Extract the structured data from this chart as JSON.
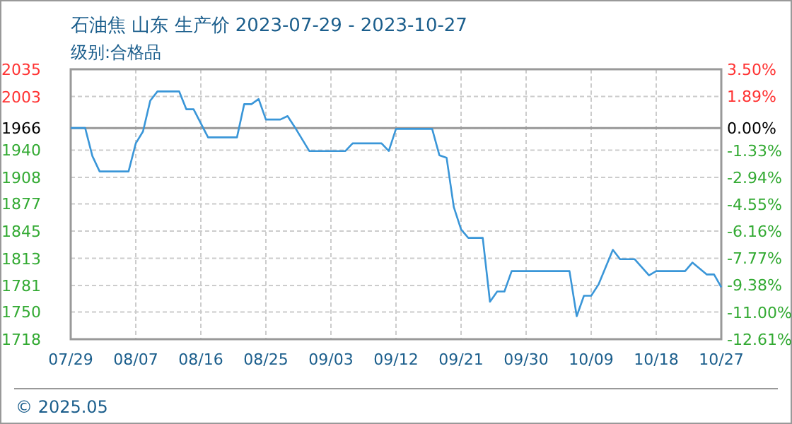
{
  "chart_data": {
    "type": "line",
    "title": "石油焦 山东 生产价 2023-07-29 - 2023-10-27",
    "subtitle": "级别:合格品",
    "annotations": [
      "© 2025.05"
    ],
    "x": [
      "2023-07-29",
      "2023-07-31",
      "2023-08-01",
      "2023-08-02",
      "2023-08-06",
      "2023-08-07",
      "2023-08-08",
      "2023-08-09",
      "2023-08-10",
      "2023-08-13",
      "2023-08-14",
      "2023-08-15",
      "2023-08-17",
      "2023-08-21",
      "2023-08-22",
      "2023-08-23",
      "2023-08-24",
      "2023-08-25",
      "2023-08-27",
      "2023-08-28",
      "2023-08-29",
      "2023-08-31",
      "2023-09-05",
      "2023-09-06",
      "2023-09-10",
      "2023-09-11",
      "2023-09-12",
      "2023-09-17",
      "2023-09-18",
      "2023-09-19",
      "2023-09-20",
      "2023-09-21",
      "2023-09-22",
      "2023-09-24",
      "2023-09-25",
      "2023-09-26",
      "2023-09-27",
      "2023-09-28",
      "2023-10-06",
      "2023-10-07",
      "2023-10-08",
      "2023-10-09",
      "2023-10-10",
      "2023-10-12",
      "2023-10-13",
      "2023-10-15",
      "2023-10-17",
      "2023-10-18",
      "2023-10-22",
      "2023-10-23",
      "2023-10-25",
      "2023-10-26",
      "2023-10-27"
    ],
    "series": [
      {
        "color": "#3a96d8",
        "values": [
          1966,
          1966,
          1933,
          1915,
          1915,
          1948,
          1962,
          1998,
          2009,
          2009,
          1988,
          1988,
          1955,
          1955,
          1994,
          1994,
          2000,
          1976,
          1976,
          1980,
          1967,
          1939,
          1939,
          1948,
          1948,
          1939,
          1965,
          1965,
          1934,
          1931,
          1873,
          1847,
          1837,
          1837,
          1762,
          1774,
          1774,
          1798,
          1798,
          1745,
          1769,
          1769,
          1782,
          1823,
          1812,
          1812,
          1793,
          1798,
          1798,
          1808,
          1794,
          1794,
          1779
        ]
      }
    ],
    "xlim": [
      "2023-07-29",
      "2023-10-27"
    ],
    "xticks": [
      {
        "value": "2023-07-29",
        "label": "07/29"
      },
      {
        "value": "2023-08-07",
        "label": "08/07"
      },
      {
        "value": "2023-08-16",
        "label": "08/16"
      },
      {
        "value": "2023-08-25",
        "label": "08/25"
      },
      {
        "value": "2023-09-03",
        "label": "09/03"
      },
      {
        "value": "2023-09-12",
        "label": "09/12"
      },
      {
        "value": "2023-09-21",
        "label": "09/21"
      },
      {
        "value": "2023-09-30",
        "label": "09/30"
      },
      {
        "value": "2023-10-09",
        "label": "10/09"
      },
      {
        "value": "2023-10-18",
        "label": "10/18"
      },
      {
        "value": "2023-10-27",
        "label": "10/27"
      }
    ],
    "ylim": [
      1718,
      2035
    ],
    "yticks": [
      1718,
      1750,
      1781,
      1813,
      1845,
      1877,
      1908,
      1940,
      1966,
      2003,
      2035
    ],
    "y2lim": [
      -12.61,
      3.5
    ],
    "y2ticks": [
      {
        "value": -12.61,
        "label": "-12.61%"
      },
      {
        "value": -11.0,
        "label": "-11.00%"
      },
      {
        "value": -9.38,
        "label": "-9.38%"
      },
      {
        "value": -7.77,
        "label": "-7.77%"
      },
      {
        "value": -6.16,
        "label": "-6.16%"
      },
      {
        "value": -4.55,
        "label": "-4.55%"
      },
      {
        "value": -2.94,
        "label": "-2.94%"
      },
      {
        "value": -1.33,
        "label": "-1.33%"
      },
      {
        "value": 0,
        "label": "0.00%"
      },
      {
        "value": 1.89,
        "label": "1.89%"
      },
      {
        "value": 3.5,
        "label": "3.50%"
      }
    ],
    "ref_lines": [
      {
        "axis": "y",
        "value": 1966,
        "color": "#999999"
      }
    ],
    "grid": true
  }
}
